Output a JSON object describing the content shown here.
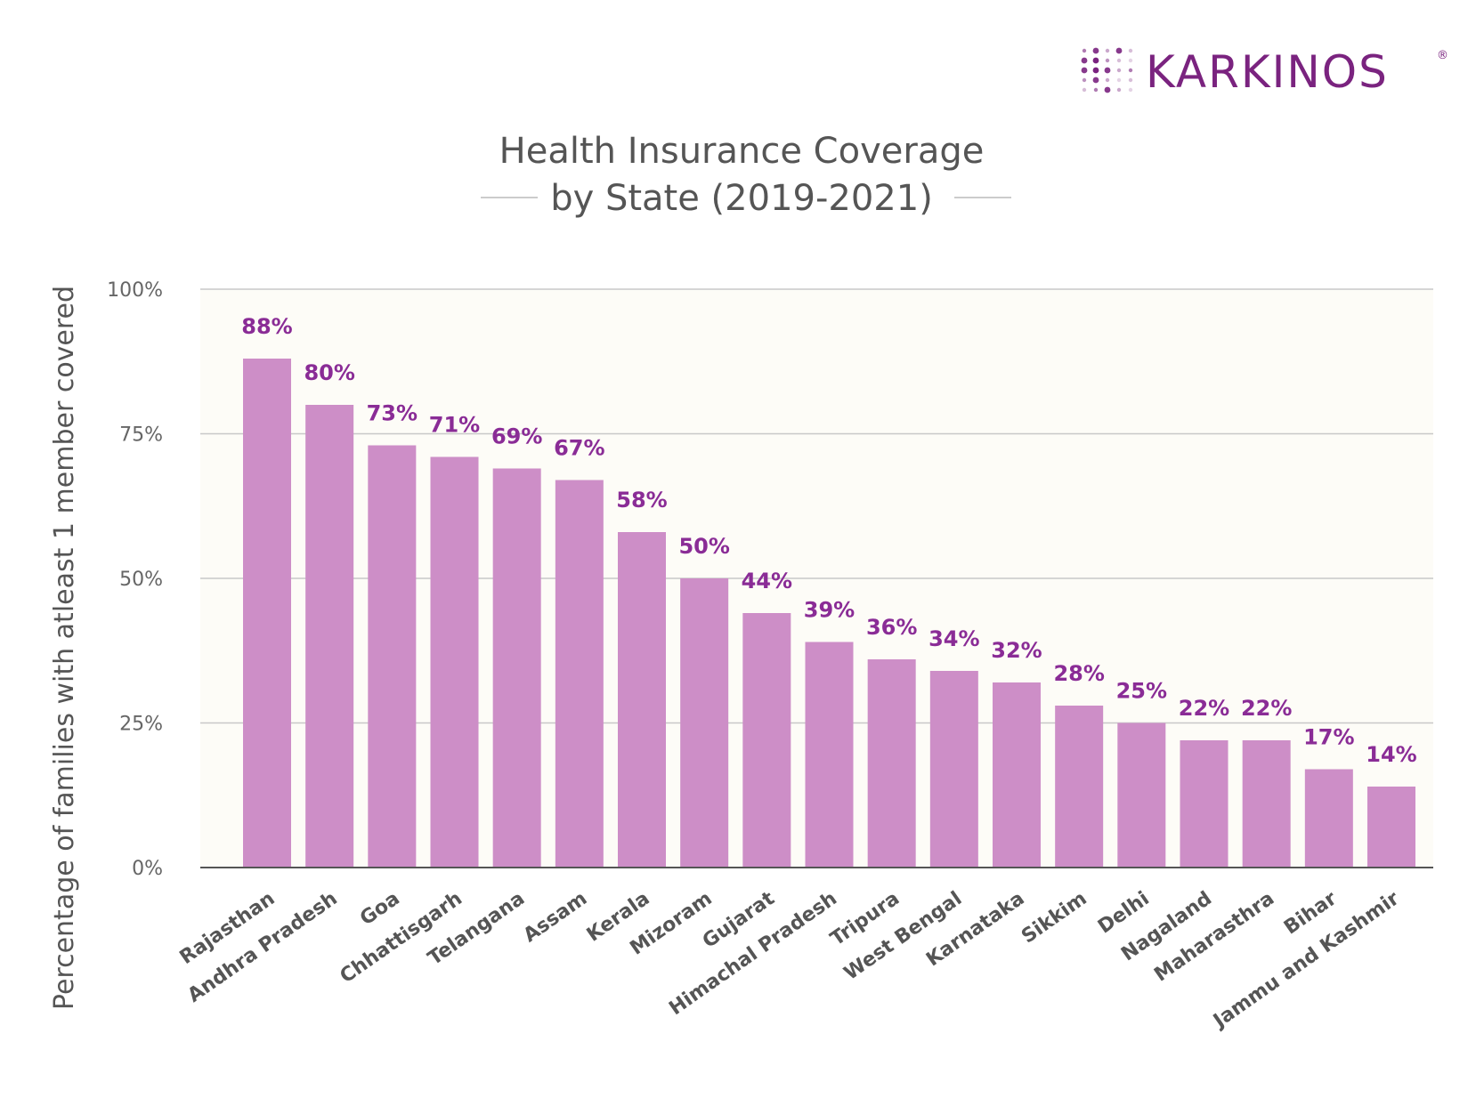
{
  "brand": {
    "name": "KARKINOS",
    "mark": "®",
    "color": "#7a237f"
  },
  "chart_data": {
    "type": "bar",
    "title_line1": "Health Insurance Coverage",
    "title_line2": "by State (2019-2021)",
    "ylabel": "Percentage of families with atleast 1 member covered",
    "xlabel": "",
    "ylim": [
      0,
      100
    ],
    "yticks": [
      {
        "value": 0,
        "label": "0%"
      },
      {
        "value": 25,
        "label": "25%"
      },
      {
        "value": 50,
        "label": "50%"
      },
      {
        "value": 75,
        "label": "75%"
      },
      {
        "value": 100,
        "label": "100%"
      }
    ],
    "grid": true,
    "categories": [
      "Rajasthan",
      "Andhra Pradesh",
      "Goa",
      "Chhattisgarh",
      "Telangana",
      "Assam",
      "Kerala",
      "Mizoram",
      "Gujarat",
      "Himachal Pradesh",
      "Tripura",
      "West Bengal",
      "Karnataka",
      "Sikkim",
      "Delhi",
      "Nagaland",
      "Maharasthra",
      "Bihar",
      "Jammu and Kashmir"
    ],
    "values": [
      88,
      80,
      73,
      71,
      69,
      67,
      58,
      50,
      44,
      39,
      36,
      34,
      32,
      28,
      25,
      22,
      22,
      17,
      14
    ],
    "data_labels": [
      "88%",
      "80%",
      "73%",
      "71%",
      "69%",
      "67%",
      "58%",
      "50%",
      "44%",
      "39%",
      "36%",
      "34%",
      "32%",
      "28%",
      "25%",
      "22%",
      "22%",
      "17%",
      "14%"
    ],
    "colors": {
      "bar": "#cd8ec7",
      "label": "#8a2c96",
      "plot_background": "#fdfcf7",
      "grid": "#c8c8c8",
      "axis": "#555555"
    }
  }
}
